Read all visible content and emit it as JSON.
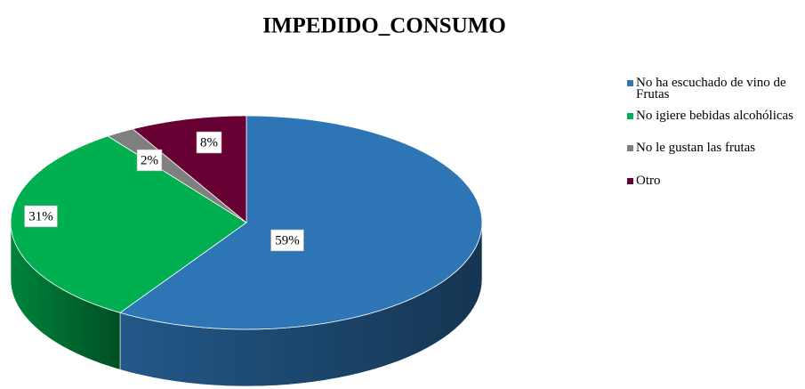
{
  "chart_data": {
    "type": "pie",
    "title": "IMPEDIDO_CONSUMO",
    "categories": [
      "No ha escuchado de vino de Frutas",
      "No igiere bebidas alcohólicas",
      "No le gustan las frutas",
      "Otro"
    ],
    "values": [
      59,
      31,
      2,
      8
    ],
    "value_labels": [
      "59%",
      "31%",
      "2%",
      "8%"
    ],
    "colors": [
      "#2e75b6",
      "#00b050",
      "#7f7f7f",
      "#660033"
    ],
    "legend": "right"
  }
}
